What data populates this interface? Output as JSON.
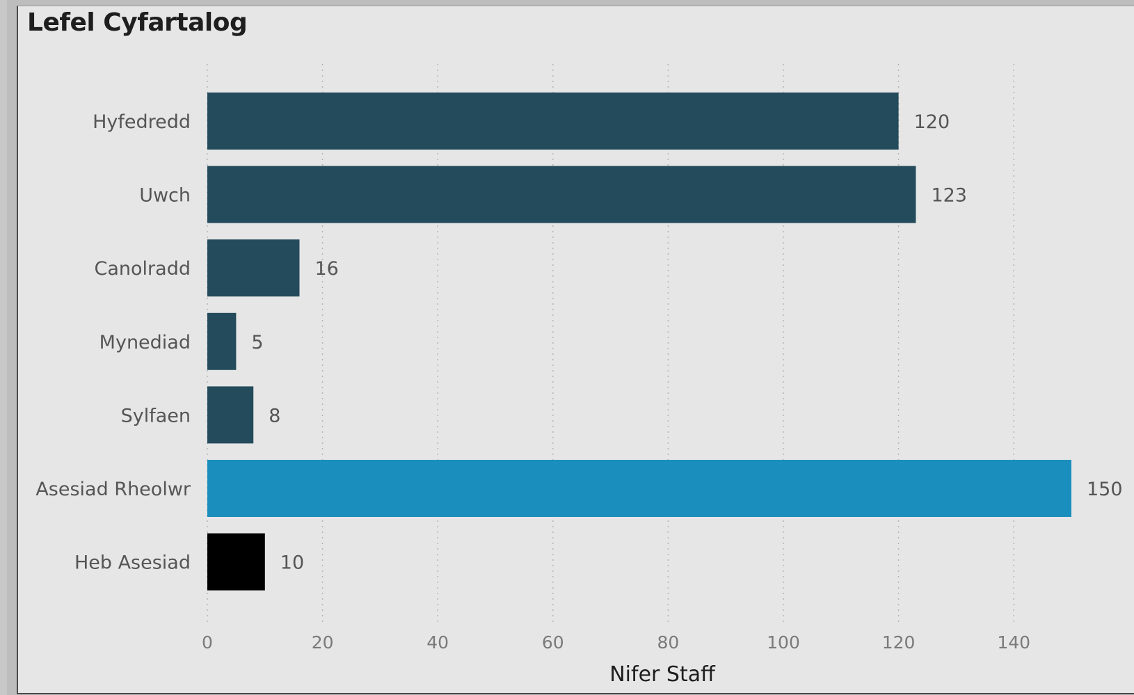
{
  "chart_data": {
    "type": "bar",
    "orientation": "horizontal",
    "title": "Lefel Cyfartalog",
    "xlabel": "Nifer Staff",
    "ylabel": "",
    "xlim": [
      0,
      150
    ],
    "xticks": [
      0,
      20,
      40,
      60,
      80,
      100,
      120,
      140
    ],
    "grid": "vertical-dotted",
    "legend": "none",
    "categories": [
      "Hyfedredd",
      "Uwch",
      "Canolradd",
      "Mynediad",
      "Sylfaen",
      "Asesiad Rheolwr",
      "Heb Asesiad"
    ],
    "values": [
      120,
      123,
      16,
      5,
      8,
      150,
      10
    ],
    "colors": [
      "#234b5b",
      "#234b5b",
      "#234b5b",
      "#234b5b",
      "#234b5b",
      "#1a8fbd",
      "#000000"
    ]
  }
}
